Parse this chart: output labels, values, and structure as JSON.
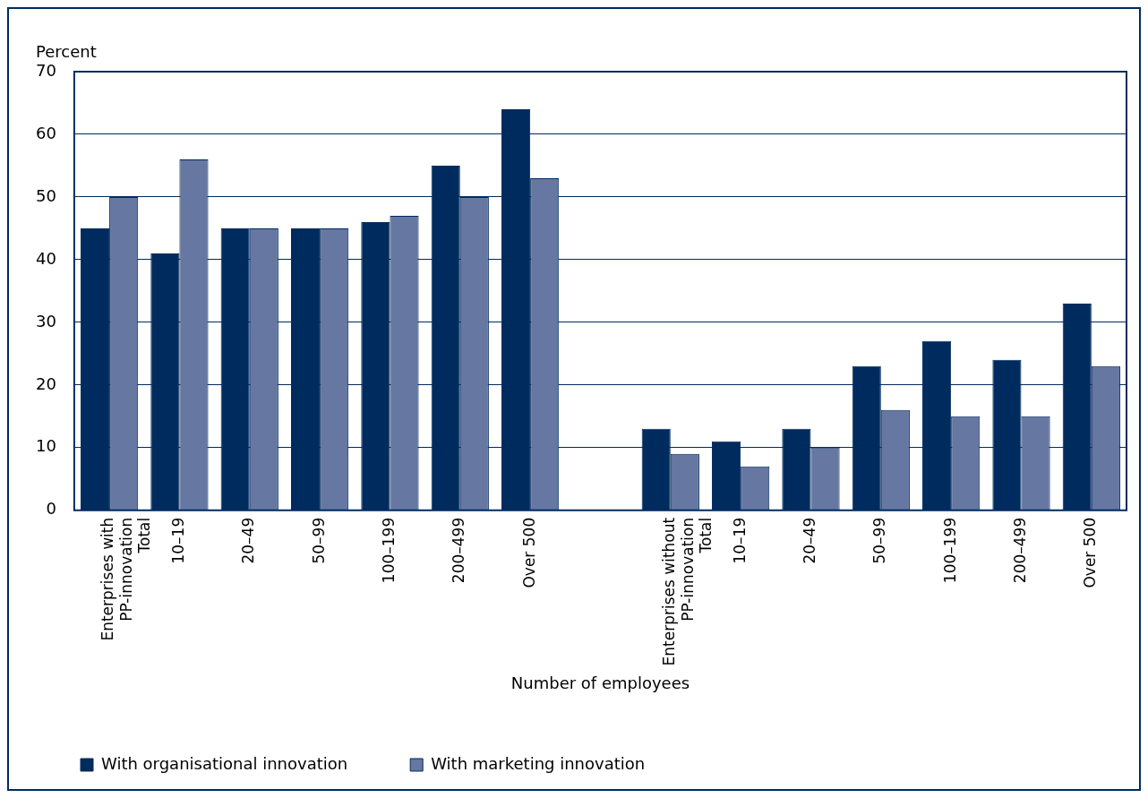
{
  "chart_data": {
    "type": "bar",
    "ylabel": "Percent",
    "xlabel": "Number of employees",
    "categories": [
      "Enterprises with\nPP-innovation\nTotal",
      "10–19",
      "20–49",
      "50–99",
      "100–199",
      "200–499",
      "Over 500",
      null,
      "Enterprises without\nPP-innovation\nTotal",
      "10–19",
      "20–49",
      "50–99",
      "100–199",
      "200–499",
      "Over 500"
    ],
    "series": [
      {
        "name": "With organisational innovation",
        "color": "#002b5e",
        "values": [
          45,
          41,
          45,
          45,
          46,
          55,
          64,
          null,
          13,
          11,
          13,
          23,
          27,
          24,
          33
        ]
      },
      {
        "name": "With marketing innovation",
        "color": "#6677a1",
        "values": [
          50,
          56,
          45,
          45,
          47,
          50,
          53,
          null,
          9,
          7,
          10,
          16,
          15,
          15,
          23
        ]
      }
    ],
    "ylim": [
      0,
      70
    ],
    "yticks": [
      0,
      10,
      20,
      30,
      40,
      50,
      60,
      70
    ],
    "grid": "y",
    "legend": "bottom left"
  }
}
